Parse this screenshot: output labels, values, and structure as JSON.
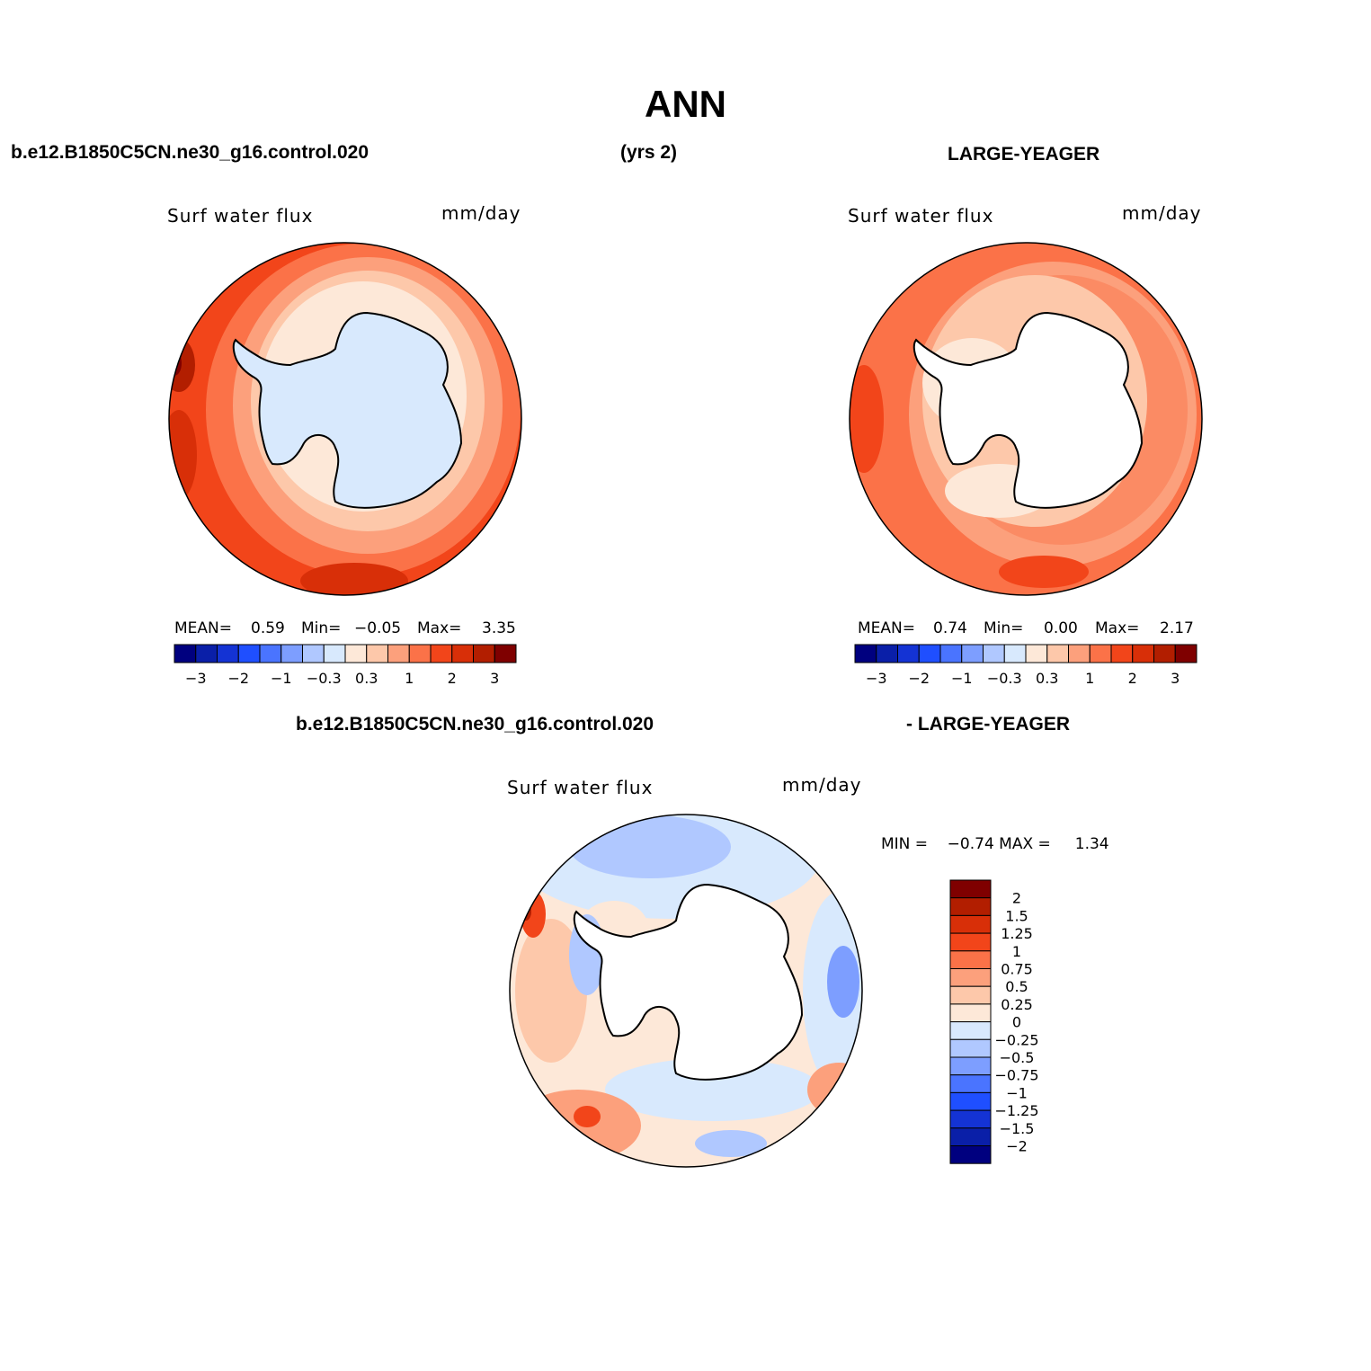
{
  "title": "ANN",
  "case_label": "b.e12.B1850C5CN.ne30_g16.control.020",
  "years_label": "(yrs 2)",
  "obs_label": "LARGE-YEAGER",
  "diff_case_label": "b.e12.B1850C5CN.ne30_g16.control.020",
  "diff_obs_label": "- LARGE-YEAGER",
  "panels": [
    {
      "var": "Surf water flux",
      "units": "mm/day",
      "mean_label": "MEAN=",
      "mean": "0.59",
      "min_label": "Min=",
      "min": "−0.05",
      "max_label": "Max=",
      "max": "3.35"
    },
    {
      "var": "Surf water flux",
      "units": "mm/day",
      "mean_label": "MEAN=",
      "mean": "0.74",
      "min_label": "Min=",
      "min": "0.00",
      "max_label": "Max=",
      "max": "2.17"
    },
    {
      "var": "Surf water flux",
      "units": "mm/day",
      "minmax_text": "MIN =    −0.74 MAX =     1.34"
    }
  ],
  "colorbar_h": {
    "colors": [
      "#00007f",
      "#0a1fa8",
      "#1433d4",
      "#1f4fff",
      "#4a74ff",
      "#7d9eff",
      "#b0c8ff",
      "#d8e9fd",
      "#fde8d8",
      "#fdc8aa",
      "#fca07c",
      "#fb7248",
      "#f2451a",
      "#d82f08",
      "#b21e00",
      "#7f0000"
    ],
    "labels": [
      "−3",
      "−2",
      "−1",
      "−0.3",
      "0.3",
      "1",
      "2",
      "3"
    ]
  },
  "colorbar_v": {
    "colors": [
      "#7f0000",
      "#b21e00",
      "#d82f08",
      "#f2451a",
      "#fb7248",
      "#fca07c",
      "#fdc8aa",
      "#fde8d8",
      "#d8e9fd",
      "#b0c8ff",
      "#7d9eff",
      "#4a74ff",
      "#1f4fff",
      "#1433d4",
      "#0a1fa8",
      "#00007f"
    ],
    "labels": [
      "2",
      "1.5",
      "1.25",
      "1",
      "0.75",
      "0.5",
      "0.25",
      "0",
      "−0.25",
      "−0.5",
      "−0.75",
      "−1",
      "−1.25",
      "−1.5",
      "−2"
    ]
  },
  "icons": {
    "continent": "antarctica-outline"
  }
}
